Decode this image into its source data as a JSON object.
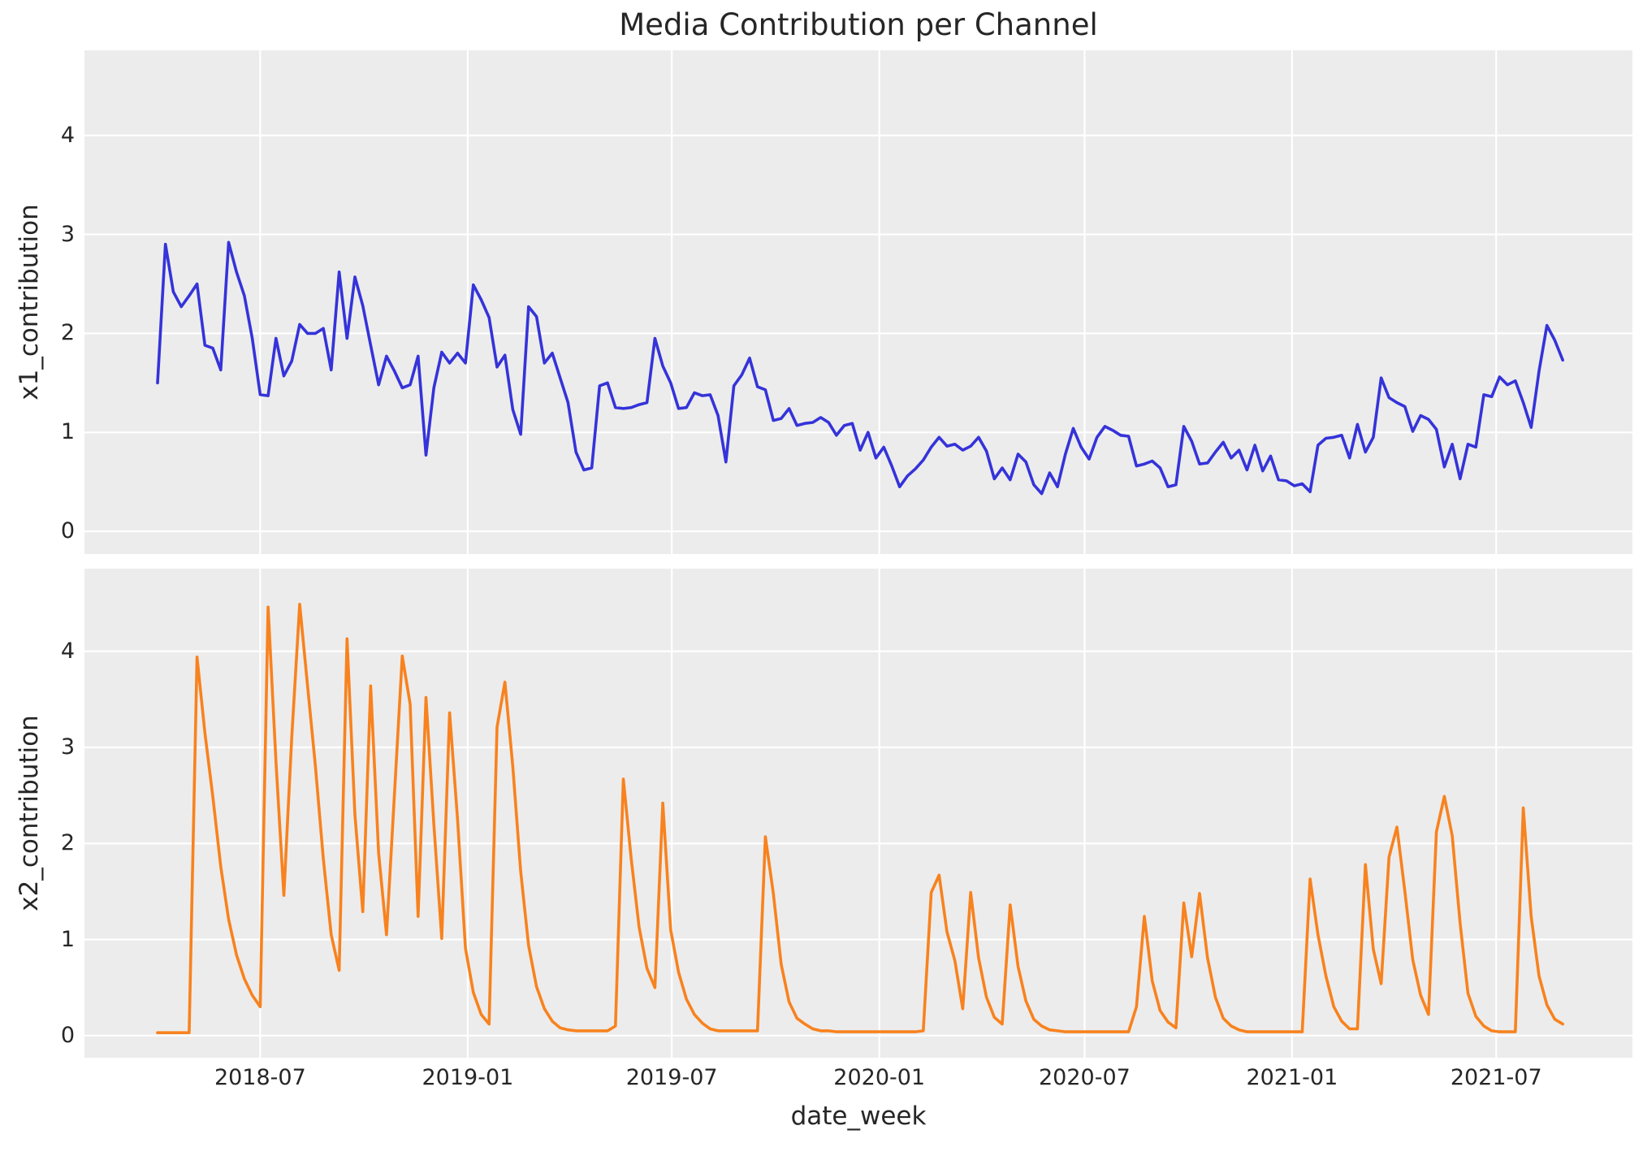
{
  "title": "Media Contribution per Channel",
  "xlabel": "date_week",
  "colors": {
    "x1_line": "#3533d9",
    "x2_line": "#f8821e",
    "plot_background": "#ececec",
    "gridline": "#ffffff",
    "text": "#262626",
    "figure_background": "#ffffff"
  },
  "chart_data": [
    {
      "type": "line",
      "ylabel": "x1_contribution",
      "series_name": "x1_contribution",
      "color": "#3533d9",
      "x_unit": "weekly samples, 179 points from 2018-04 to 2021-09",
      "ylim": [
        -0.23,
        4.86
      ],
      "yticks": [
        0,
        1,
        2,
        3,
        4
      ],
      "grid": true,
      "legend": false,
      "values": [
        1.5,
        2.9,
        2.42,
        2.27,
        2.38,
        2.5,
        1.88,
        1.85,
        1.63,
        2.92,
        2.62,
        2.38,
        1.95,
        1.38,
        1.37,
        1.95,
        1.57,
        1.72,
        2.09,
        2.0,
        2.0,
        2.05,
        1.63,
        2.62,
        1.95,
        2.57,
        2.28,
        1.88,
        1.48,
        1.77,
        1.62,
        1.45,
        1.48,
        1.77,
        0.77,
        1.45,
        1.81,
        1.7,
        1.8,
        1.7,
        2.49,
        2.34,
        2.16,
        1.66,
        1.78,
        1.23,
        0.98,
        2.27,
        2.17,
        1.7,
        1.8,
        1.55,
        1.3,
        0.8,
        0.62,
        0.64,
        1.47,
        1.5,
        1.25,
        1.24,
        1.25,
        1.28,
        1.3,
        1.95,
        1.67,
        1.5,
        1.24,
        1.25,
        1.4,
        1.37,
        1.38,
        1.17,
        0.7,
        1.47,
        1.58,
        1.75,
        1.46,
        1.43,
        1.12,
        1.14,
        1.24,
        1.07,
        1.09,
        1.1,
        1.15,
        1.1,
        0.97,
        1.07,
        1.09,
        0.82,
        1.0,
        0.74,
        0.85,
        0.66,
        0.45,
        0.56,
        0.63,
        0.72,
        0.85,
        0.95,
        0.86,
        0.88,
        0.82,
        0.86,
        0.95,
        0.81,
        0.53,
        0.64,
        0.52,
        0.78,
        0.7,
        0.47,
        0.38,
        0.59,
        0.45,
        0.78,
        1.04,
        0.85,
        0.73,
        0.95,
        1.06,
        1.02,
        0.97,
        0.96,
        0.66,
        0.68,
        0.71,
        0.64,
        0.45,
        0.47,
        1.06,
        0.91,
        0.68,
        0.69,
        0.8,
        0.9,
        0.74,
        0.82,
        0.62,
        0.87,
        0.61,
        0.76,
        0.52,
        0.51,
        0.46,
        0.48,
        0.4,
        0.87,
        0.94,
        0.95,
        0.97,
        0.74,
        1.08,
        0.8,
        0.95,
        1.55,
        1.35,
        1.3,
        1.26,
        1.01,
        1.17,
        1.13,
        1.03,
        0.65,
        0.88,
        0.53,
        0.88,
        0.85,
        1.38,
        1.36,
        1.56,
        1.48,
        1.52,
        1.3,
        1.05,
        1.62,
        2.08,
        1.93,
        1.73
      ]
    },
    {
      "type": "line",
      "ylabel": "x2_contribution",
      "series_name": "x2_contribution",
      "color": "#f8821e",
      "x_unit": "weekly samples, 179 points from 2018-04 to 2021-09",
      "ylim": [
        -0.23,
        4.86
      ],
      "yticks": [
        0,
        1,
        2,
        3,
        4
      ],
      "grid": true,
      "legend": false,
      "values": [
        0.03,
        0.03,
        0.03,
        0.03,
        0.03,
        3.94,
        3.15,
        2.49,
        1.76,
        1.21,
        0.84,
        0.59,
        0.42,
        0.3,
        4.46,
        2.85,
        1.46,
        3.1,
        4.49,
        3.64,
        2.8,
        1.84,
        1.05,
        0.68,
        4.13,
        2.3,
        1.29,
        3.64,
        1.9,
        1.05,
        2.5,
        3.95,
        3.45,
        1.24,
        3.52,
        2.2,
        1.01,
        3.36,
        2.25,
        0.91,
        0.45,
        0.22,
        0.12,
        3.21,
        3.68,
        2.8,
        1.71,
        0.94,
        0.51,
        0.28,
        0.15,
        0.08,
        0.06,
        0.05,
        0.05,
        0.05,
        0.05,
        0.05,
        0.1,
        2.67,
        1.84,
        1.13,
        0.7,
        0.5,
        2.42,
        1.1,
        0.66,
        0.38,
        0.22,
        0.13,
        0.07,
        0.05,
        0.05,
        0.05,
        0.05,
        0.05,
        0.05,
        2.07,
        1.48,
        0.74,
        0.35,
        0.18,
        0.12,
        0.07,
        0.05,
        0.05,
        0.04,
        0.04,
        0.04,
        0.04,
        0.04,
        0.04,
        0.04,
        0.04,
        0.04,
        0.04,
        0.04,
        0.05,
        1.49,
        1.67,
        1.08,
        0.78,
        0.28,
        1.49,
        0.81,
        0.4,
        0.19,
        0.12,
        1.36,
        0.72,
        0.36,
        0.17,
        0.1,
        0.06,
        0.05,
        0.04,
        0.04,
        0.04,
        0.04,
        0.04,
        0.04,
        0.04,
        0.04,
        0.04,
        0.3,
        1.24,
        0.57,
        0.26,
        0.14,
        0.08,
        1.38,
        0.82,
        1.48,
        0.81,
        0.4,
        0.18,
        0.1,
        0.06,
        0.04,
        0.04,
        0.04,
        0.04,
        0.04,
        0.04,
        0.04,
        0.04,
        1.63,
        1.05,
        0.62,
        0.3,
        0.15,
        0.07,
        0.07,
        1.78,
        0.9,
        0.54,
        1.86,
        2.17,
        1.5,
        0.79,
        0.42,
        0.22,
        2.12,
        2.49,
        2.08,
        1.17,
        0.44,
        0.2,
        0.1,
        0.05,
        0.04,
        0.04,
        0.04,
        2.37,
        1.24,
        0.62,
        0.32,
        0.17,
        0.12
      ]
    }
  ],
  "xticks": [
    {
      "label": "2018-07",
      "pos": 13.0
    },
    {
      "label": "2019-01",
      "pos": 39.29
    },
    {
      "label": "2019-07",
      "pos": 65.14
    },
    {
      "label": "2020-01",
      "pos": 91.43
    },
    {
      "label": "2020-07",
      "pos": 117.43
    },
    {
      "label": "2021-01",
      "pos": 143.71
    },
    {
      "label": "2021-07",
      "pos": 169.57
    }
  ]
}
